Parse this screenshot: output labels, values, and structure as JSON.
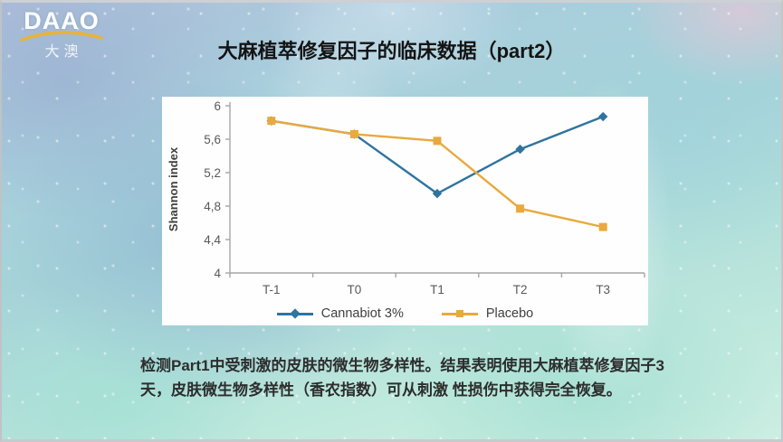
{
  "slide": {
    "logo": {
      "text": "DAAO",
      "subtext": "大澳",
      "arc_color": "#e8b33b"
    },
    "title": "大麻植萃修复因子的临床数据（part2）",
    "caption_lines": [
      "检测Part1中受刺激的皮肤的微生物多样性。结果表明使用大麻植萃修复因子3",
      "天，皮肤微生物多样性（香农指数）可从刺激 性损伤中获得完全恢复。"
    ]
  },
  "chart_data": {
    "type": "line",
    "title": "",
    "xlabel": "",
    "ylabel": "Shannon index",
    "categories": [
      "T-1",
      "T0",
      "T1",
      "T2",
      "T3"
    ],
    "series": [
      {
        "name": "Cannabiot 3%",
        "color": "#2e74a0",
        "marker": "diamond",
        "values": [
          5.82,
          5.66,
          4.95,
          5.48,
          5.87
        ]
      },
      {
        "name": "Placebo",
        "color": "#e9a93d",
        "marker": "square",
        "values": [
          5.82,
          5.66,
          5.58,
          4.77,
          4.55
        ]
      }
    ],
    "ylim": [
      4,
      6
    ],
    "yticks": {
      "values": [
        4,
        4.4,
        4.8,
        5.2,
        5.6,
        6
      ],
      "labels": [
        "4",
        "4,4",
        "4,8",
        "5,2",
        "5,6",
        "6"
      ]
    },
    "grid": false,
    "legend_position": "bottom",
    "axis_color": "#a6a6a6",
    "plot_bg": "#fefefe"
  }
}
